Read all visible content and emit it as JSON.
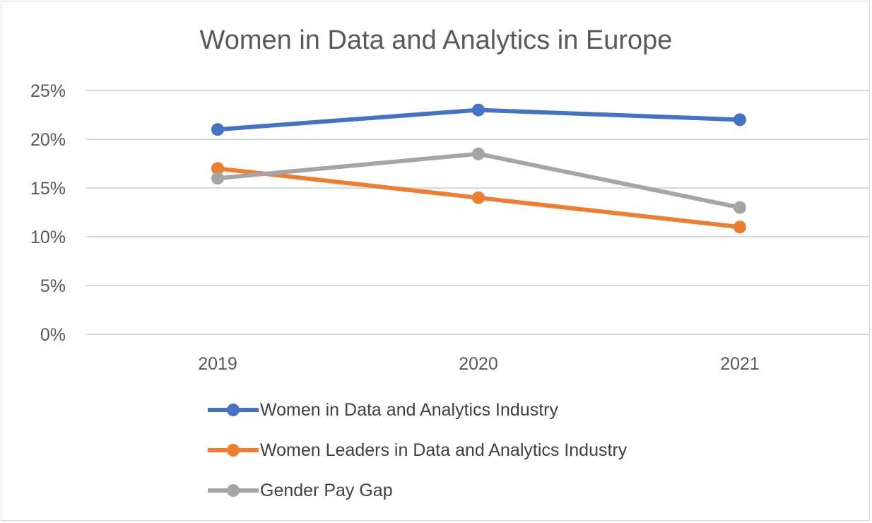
{
  "chart_data": {
    "type": "line",
    "title": "Women in Data and Analytics in Europe",
    "categories": [
      "2019",
      "2020",
      "2021"
    ],
    "ylim": [
      0,
      25
    ],
    "yticks": [
      "0%",
      "5%",
      "10%",
      "15%",
      "20%",
      "25%"
    ],
    "ytick_values": [
      0,
      5,
      10,
      15,
      20,
      25
    ],
    "grid": true,
    "legend_position": "bottom",
    "series": [
      {
        "name": "Women in Data and Analytics Industry",
        "values": [
          21,
          23,
          22
        ],
        "color": "#4472C4"
      },
      {
        "name": "Women Leaders in Data and Analytics Industry",
        "values": [
          17,
          14,
          11
        ],
        "color": "#ED7D31"
      },
      {
        "name": "Gender Pay Gap",
        "values": [
          16,
          18.5,
          13
        ],
        "color": "#A5A5A5"
      }
    ]
  }
}
